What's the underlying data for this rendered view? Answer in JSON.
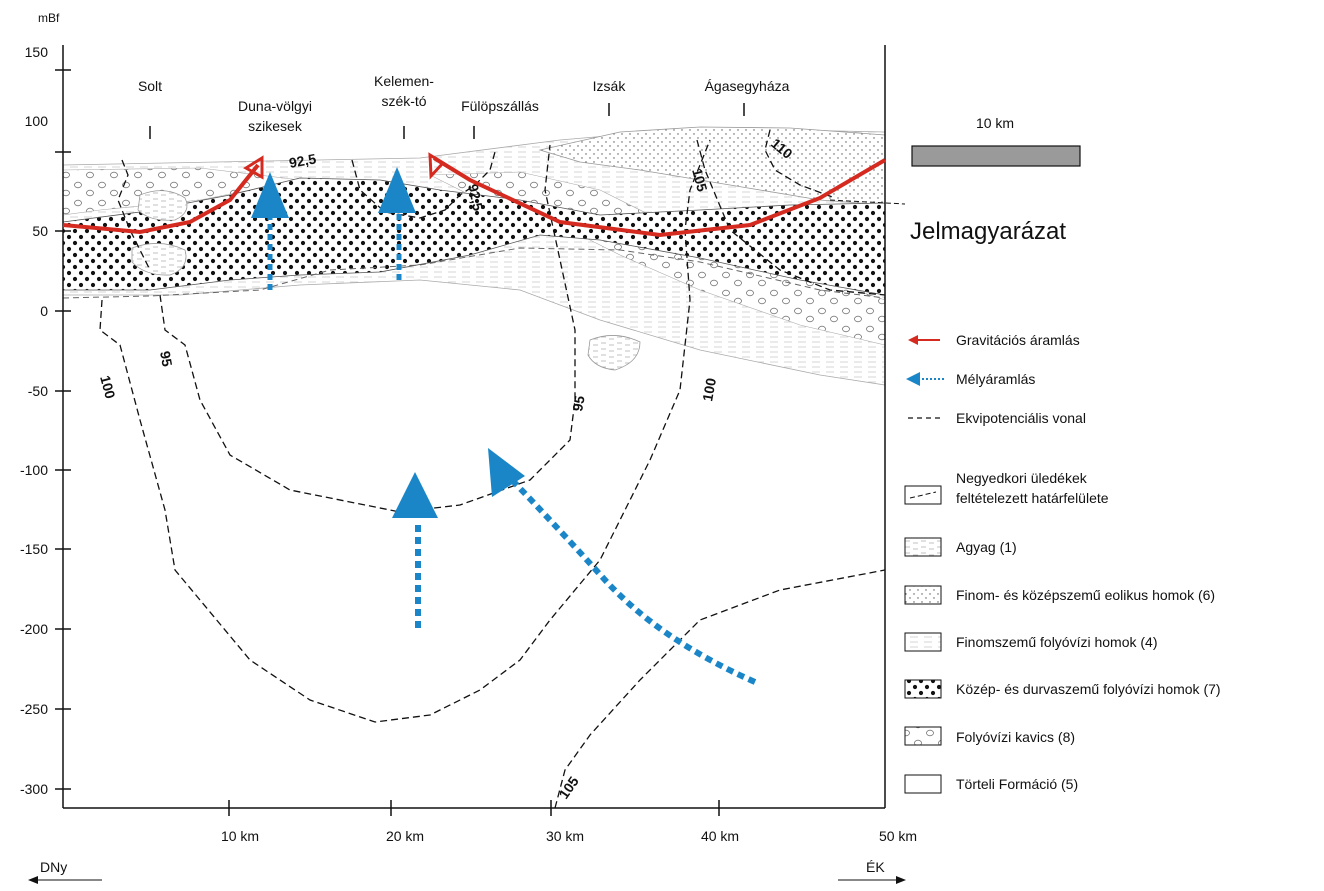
{
  "figure": {
    "y_unit": "mBf",
    "y_ticks": [
      "150",
      "100",
      "50",
      "0",
      "-50",
      "-100",
      "-150",
      "-200",
      "-250",
      "-300"
    ],
    "x_ticks": [
      "10 km",
      "20 km",
      "30 km",
      "40 km",
      "50 km"
    ],
    "direction_left": "DNy",
    "direction_right": "ÉK",
    "scale_bar_label": "10 km"
  },
  "places": [
    {
      "name": "Solt"
    },
    {
      "name": "Duna-völgyi",
      "name2": "szikesek"
    },
    {
      "name": "Kelemen-",
      "name2": "szék-tó"
    },
    {
      "name": "Fülöpszállás"
    },
    {
      "name": "Izsák"
    },
    {
      "name": "Ágasegyháza"
    }
  ],
  "contours": [
    "92,5",
    "92,5",
    "95",
    "95",
    "100",
    "100",
    "105",
    "105",
    "110"
  ],
  "legend": {
    "title": "Jelmagyarázat",
    "items": [
      {
        "label": "Gravitációs áramlás"
      },
      {
        "label": "Mélyáramlás"
      },
      {
        "label": "Ekvipotenciális vonal"
      },
      {
        "label": "Negyedkori üledékek",
        "label2": "feltételezett határfelülete"
      },
      {
        "label": "Agyag (1)"
      },
      {
        "label": "Finom- és középszemű eolikus homok (6)"
      },
      {
        "label": "Finomszemű folyóvízi homok (4)"
      },
      {
        "label": "Közép- és durvaszemű folyóvízi homok (7)"
      },
      {
        "label": "Folyóvízi kavics (8)"
      },
      {
        "label": "Törteli Formáció (5)"
      }
    ]
  },
  "colors": {
    "gravity_flow": "#d42a20",
    "deep_flow": "#1a86c8",
    "scale_bar": "#9a9a9a"
  }
}
